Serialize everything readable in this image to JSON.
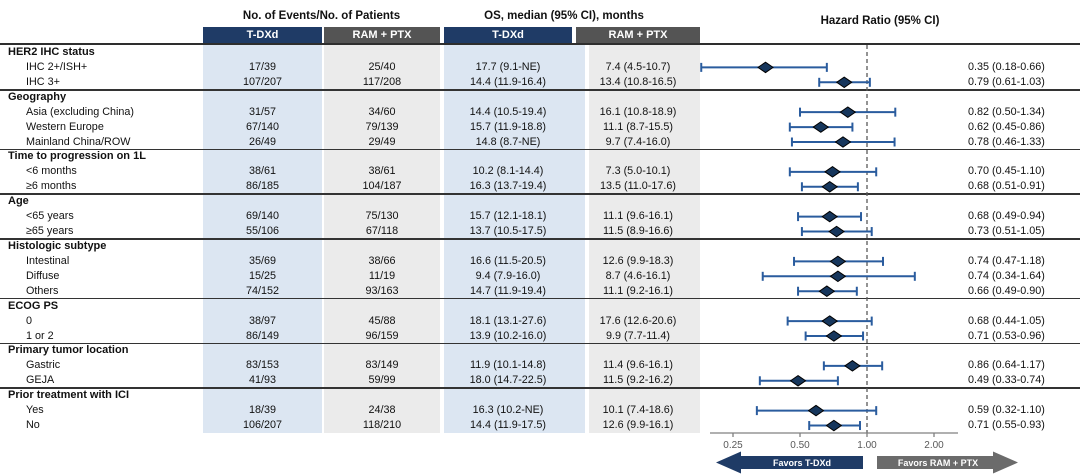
{
  "header": {
    "events_group": "No. of Events/No. of Patients",
    "os_group": "OS, median (95% CI), months",
    "hr_group": "Hazard Ratio (95% CI)",
    "subcols": {
      "tdxd": "T-DXd",
      "ram": "RAM + PTX"
    }
  },
  "favors": {
    "left_label": "Favors T-DXd",
    "right_label": "Favors RAM + PTX"
  },
  "colors": {
    "navy": "#1F3B66",
    "dark_gray": "#545454",
    "band_blue": "#DCE6F2",
    "band_gray": "#EBEBEB",
    "whisker": "#2A5C9E",
    "diamond_fill": "#16365C",
    "diamond_stroke": "#000000",
    "arrow_gray": "#6B6B6B",
    "axis_gray": "#808080",
    "tick_label_gray": "#595959",
    "ref_dash": "#595959"
  },
  "chart_data": {
    "type": "forest",
    "x_scale": "log2",
    "ref_line": 1.0,
    "ticks": [
      {
        "value": 0.25,
        "label": "0.25"
      },
      {
        "value": 0.5,
        "label": "0.50"
      },
      {
        "value": 1.0,
        "label": "1.00"
      },
      {
        "value": 2.0,
        "label": "2.00"
      }
    ],
    "columns": [
      "Subgroup",
      "Events T-DXd",
      "Events RAM + PTX",
      "OS T-DXd",
      "OS RAM + PTX",
      "Hazard Ratio (95% CI)"
    ],
    "sections": [
      {
        "label": "HER2 IHC status",
        "rows": [
          {
            "label": "IHC 2+/ISH+",
            "ev_tdxd": "17/39",
            "ev_ram": "25/40",
            "os_tdxd": "17.7 (9.1-NE)",
            "os_ram": "7.4 (4.5-10.7)",
            "hr": 0.35,
            "lo": 0.18,
            "hi": 0.66,
            "hr_text": "0.35 (0.18-0.66)"
          },
          {
            "label": "IHC 3+",
            "ev_tdxd": "107/207",
            "ev_ram": "117/208",
            "os_tdxd": "14.4 (11.9-16.4)",
            "os_ram": "13.4 (10.8-16.5)",
            "hr": 0.79,
            "lo": 0.61,
            "hi": 1.03,
            "hr_text": "0.79 (0.61-1.03)"
          }
        ]
      },
      {
        "label": "Geography",
        "rows": [
          {
            "label": "Asia (excluding China)",
            "ev_tdxd": "31/57",
            "ev_ram": "34/60",
            "os_tdxd": "14.4 (10.5-19.4)",
            "os_ram": "16.1 (10.8-18.9)",
            "hr": 0.82,
            "lo": 0.5,
            "hi": 1.34,
            "hr_text": "0.82 (0.50-1.34)"
          },
          {
            "label": "Western Europe",
            "ev_tdxd": "67/140",
            "ev_ram": "79/139",
            "os_tdxd": "15.7 (11.9-18.8)",
            "os_ram": "11.1 (8.7-15.5)",
            "hr": 0.62,
            "lo": 0.45,
            "hi": 0.86,
            "hr_text": "0.62 (0.45-0.86)"
          },
          {
            "label": "Mainland China/ROW",
            "ev_tdxd": "26/49",
            "ev_ram": "29/49",
            "os_tdxd": "14.8 (8.7-NE)",
            "os_ram": "9.7 (7.4-16.0)",
            "hr": 0.78,
            "lo": 0.46,
            "hi": 1.33,
            "hr_text": "0.78 (0.46-1.33)"
          }
        ]
      },
      {
        "label": "Time to progression on 1L",
        "rows": [
          {
            "label": "<6 months",
            "ev_tdxd": "38/61",
            "ev_ram": "38/61",
            "os_tdxd": "10.2 (8.1-14.4)",
            "os_ram": "7.3 (5.0-10.1)",
            "hr": 0.7,
            "lo": 0.45,
            "hi": 1.1,
            "hr_text": "0.70 (0.45-1.10)"
          },
          {
            "label": "≥6 months",
            "ev_tdxd": "86/185",
            "ev_ram": "104/187",
            "os_tdxd": "16.3 (13.7-19.4)",
            "os_ram": "13.5 (11.0-17.6)",
            "hr": 0.68,
            "lo": 0.51,
            "hi": 0.91,
            "hr_text": "0.68 (0.51-0.91)"
          }
        ]
      },
      {
        "label": "Age",
        "rows": [
          {
            "label": "<65 years",
            "ev_tdxd": "69/140",
            "ev_ram": "75/130",
            "os_tdxd": "15.7 (12.1-18.1)",
            "os_ram": "11.1 (9.6-16.1)",
            "hr": 0.68,
            "lo": 0.49,
            "hi": 0.94,
            "hr_text": "0.68 (0.49-0.94)"
          },
          {
            "label": "≥65 years",
            "ev_tdxd": "55/106",
            "ev_ram": "67/118",
            "os_tdxd": "13.7 (10.5-17.5)",
            "os_ram": "11.5 (8.9-16.6)",
            "hr": 0.73,
            "lo": 0.51,
            "hi": 1.05,
            "hr_text": "0.73 (0.51-1.05)"
          }
        ]
      },
      {
        "label": "Histologic subtype",
        "rows": [
          {
            "label": "Intestinal",
            "ev_tdxd": "35/69",
            "ev_ram": "38/66",
            "os_tdxd": "16.6 (11.5-20.5)",
            "os_ram": "12.6 (9.9-18.3)",
            "hr": 0.74,
            "lo": 0.47,
            "hi": 1.18,
            "hr_text": "0.74 (0.47-1.18)"
          },
          {
            "label": "Diffuse",
            "ev_tdxd": "15/25",
            "ev_ram": "11/19",
            "os_tdxd": "9.4 (7.9-16.0)",
            "os_ram": "8.7 (4.6-16.1)",
            "hr": 0.74,
            "lo": 0.34,
            "hi": 1.64,
            "hr_text": "0.74 (0.34-1.64)"
          },
          {
            "label": "Others",
            "ev_tdxd": "74/152",
            "ev_ram": "93/163",
            "os_tdxd": "14.7 (11.9-19.4)",
            "os_ram": "11.1 (9.2-16.1)",
            "hr": 0.66,
            "lo": 0.49,
            "hi": 0.9,
            "hr_text": "0.66 (0.49-0.90)"
          }
        ]
      },
      {
        "label": "ECOG PS",
        "rows": [
          {
            "label": "0",
            "ev_tdxd": "38/97",
            "ev_ram": "45/88",
            "os_tdxd": "18.1 (13.1-27.6)",
            "os_ram": "17.6 (12.6-20.6)",
            "hr": 0.68,
            "lo": 0.44,
            "hi": 1.05,
            "hr_text": "0.68 (0.44-1.05)"
          },
          {
            "label": "1 or 2",
            "ev_tdxd": "86/149",
            "ev_ram": "96/159",
            "os_tdxd": "13.9 (10.2-16.0)",
            "os_ram": "9.9 (7.7-11.4)",
            "hr": 0.71,
            "lo": 0.53,
            "hi": 0.96,
            "hr_text": "0.71 (0.53-0.96)"
          }
        ]
      },
      {
        "label": "Primary tumor location",
        "rows": [
          {
            "label": "Gastric",
            "ev_tdxd": "83/153",
            "ev_ram": "83/149",
            "os_tdxd": "11.9 (10.1-14.8)",
            "os_ram": "11.4 (9.6-16.1)",
            "hr": 0.86,
            "lo": 0.64,
            "hi": 1.17,
            "hr_text": "0.86 (0.64-1.17)"
          },
          {
            "label": "GEJA",
            "ev_tdxd": "41/93",
            "ev_ram": "59/99",
            "os_tdxd": "18.0 (14.7-22.5)",
            "os_ram": "11.5 (9.2-16.2)",
            "hr": 0.49,
            "lo": 0.33,
            "hi": 0.74,
            "hr_text": "0.49 (0.33-0.74)"
          }
        ]
      },
      {
        "label": "Prior treatment with ICI",
        "rows": [
          {
            "label": "Yes",
            "ev_tdxd": "18/39",
            "ev_ram": "24/38",
            "os_tdxd": "16.3 (10.2-NE)",
            "os_ram": "10.1 (7.4-18.6)",
            "hr": 0.59,
            "lo": 0.32,
            "hi": 1.1,
            "hr_text": "0.59 (0.32-1.10)"
          },
          {
            "label": "No",
            "ev_tdxd": "106/207",
            "ev_ram": "118/210",
            "os_tdxd": "14.4 (11.9-17.5)",
            "os_ram": "12.6 (9.9-16.1)",
            "hr": 0.71,
            "lo": 0.55,
            "hi": 0.93,
            "hr_text": "0.71 (0.55-0.93)"
          }
        ]
      }
    ]
  }
}
